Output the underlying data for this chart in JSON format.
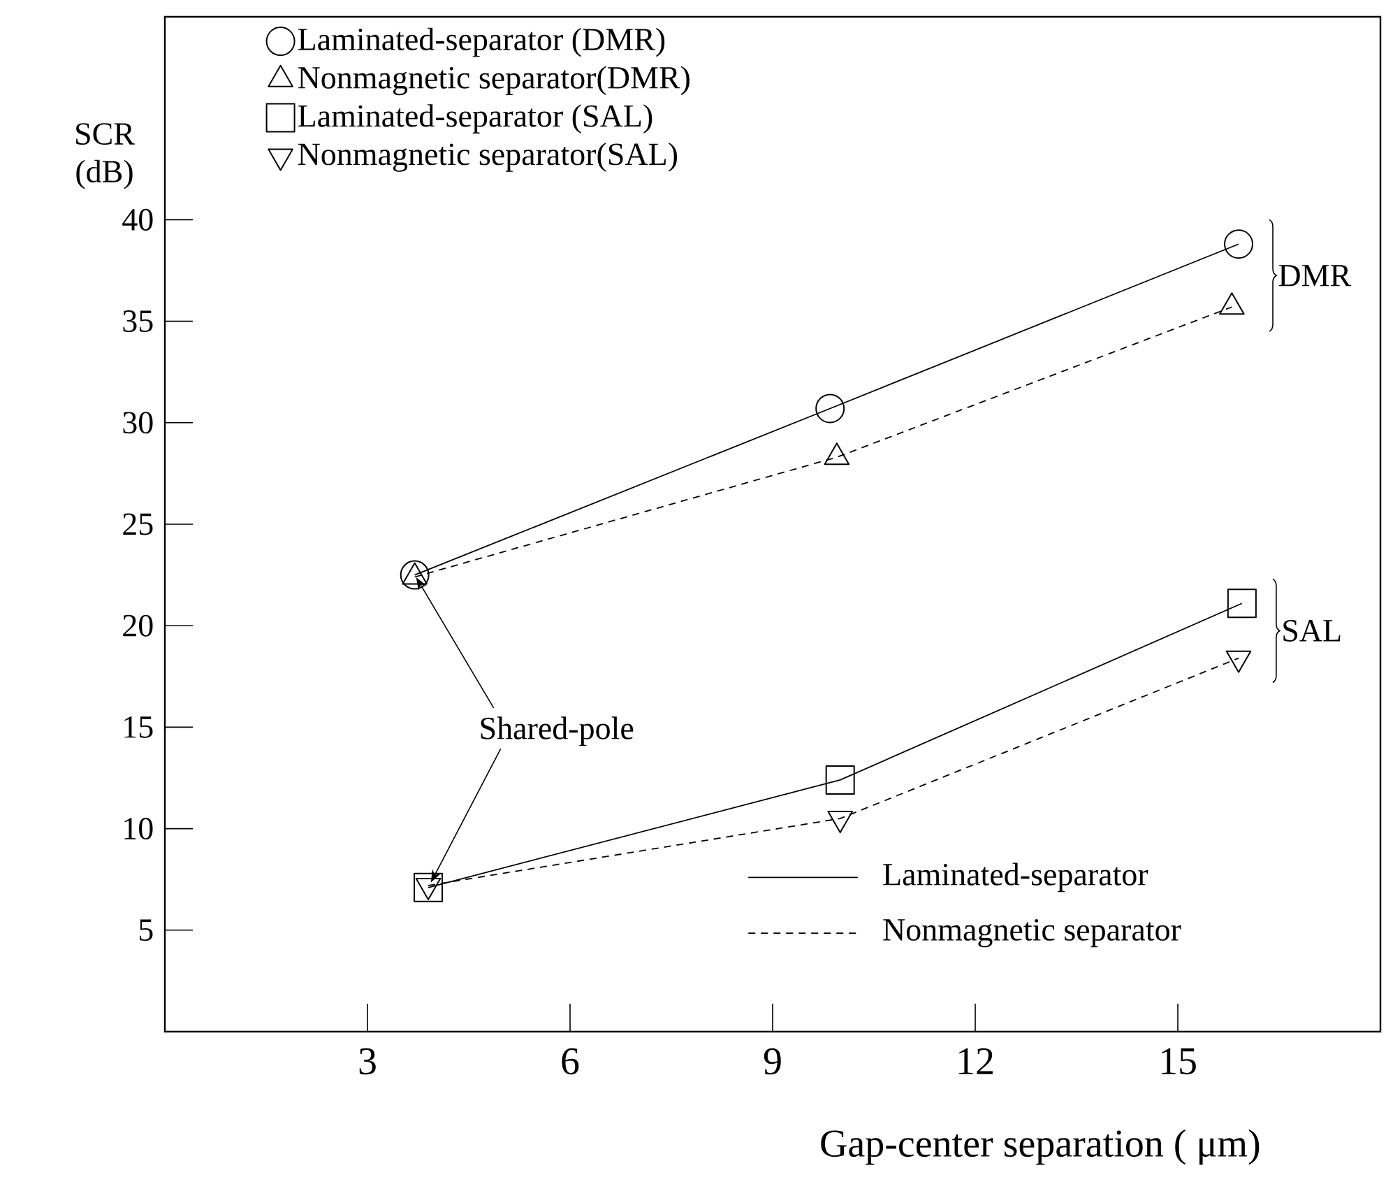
{
  "chart_data": {
    "type": "line",
    "xlabel": "Gap-center separation ( μm)",
    "ylabel": "SCR (dB)",
    "xlim": [
      0,
      18
    ],
    "ylim": [
      0,
      50
    ],
    "xticks": [
      3,
      6,
      9,
      12,
      15
    ],
    "yticks": [
      5,
      10,
      15,
      20,
      25,
      30,
      35,
      40
    ],
    "legend": "top left",
    "series": [
      {
        "name": "Laminated-separator (DMR)",
        "color": "#000000",
        "x": [
          3.7,
          9.85,
          15.9
        ],
        "values": [
          22.5,
          30.7,
          38.8
        ],
        "marker": "circle",
        "line_style": "solid"
      },
      {
        "name": "Nonmagnetic separator(DMR)",
        "color": "#000000",
        "x": [
          3.7,
          9.95,
          15.8
        ],
        "values": [
          22.4,
          28.3,
          35.7
        ],
        "marker": "triangle",
        "line_style": "dashed"
      },
      {
        "name": "Laminated-separator (SAL)",
        "color": "#000000",
        "x": [
          3.9,
          10.0,
          15.95
        ],
        "values": [
          7.1,
          12.4,
          21.1
        ],
        "marker": "square",
        "line_style": "solid"
      },
      {
        "name": "Nonmagnetic separator(SAL)",
        "color": "#000000",
        "x": [
          3.9,
          10.0,
          15.9
        ],
        "values": [
          7.2,
          10.5,
          18.4
        ],
        "marker": "triangle down",
        "line_style": "dashed"
      }
    ],
    "annotations": [
      "DMR",
      "SAL",
      {
        "text": "Shared-pole",
        "x": 3.7,
        "y": 22.5
      },
      "Laminated-separator",
      "Nonmagnetic separator"
    ]
  }
}
